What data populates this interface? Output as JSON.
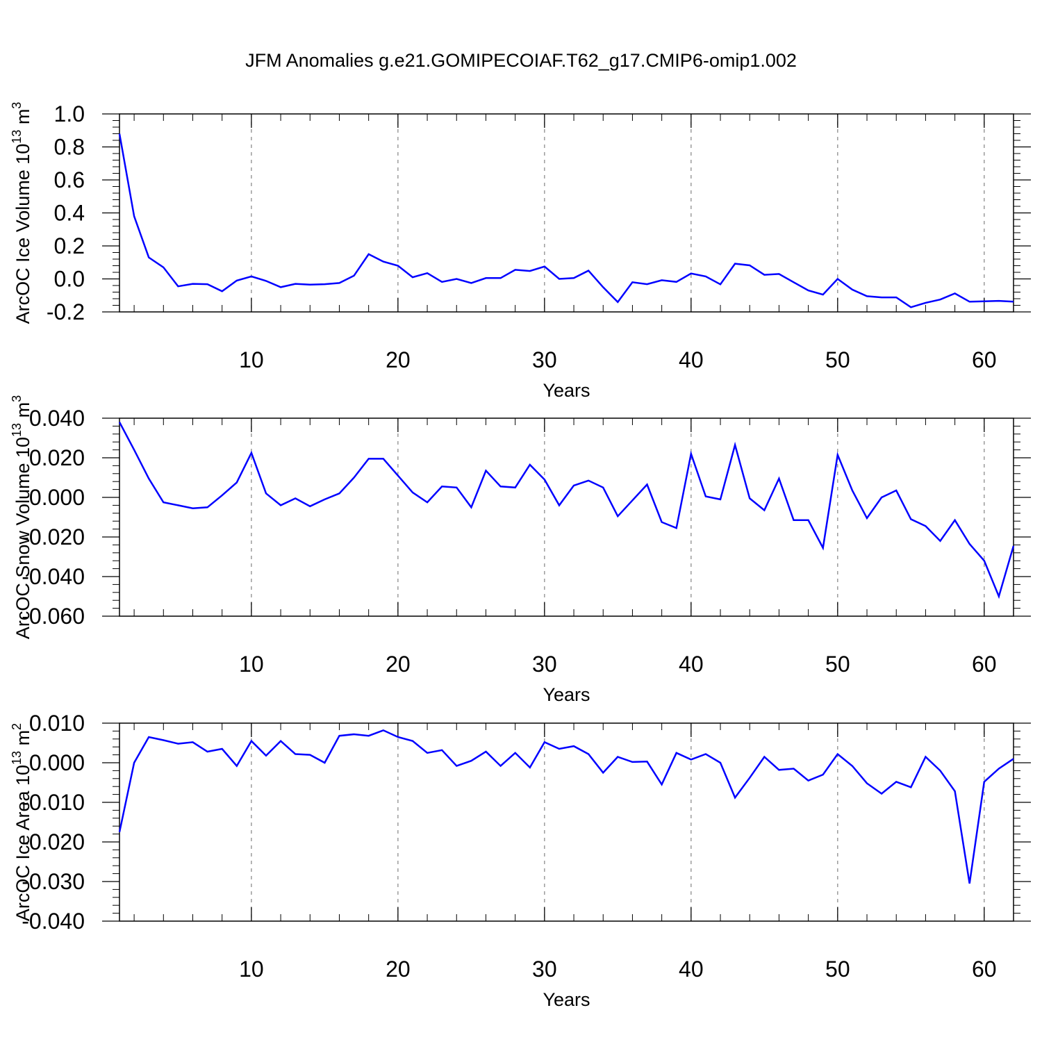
{
  "title": "JFM Anomalies g.e21.GOMIPECOIAF.T62_g17.CMIP6-omip1.002",
  "colors": {
    "line": "#0000ff",
    "axis": "#000000",
    "grid": "#8c8c8c"
  },
  "chart_data": [
    {
      "type": "line",
      "ylabel": "ArcOC Ice Volume 10",
      "ylabel_sup": "13",
      "ylabel_unit": "m",
      "ylabel_unit_sup": "3",
      "xlabel": "Years",
      "xlim": [
        1,
        62
      ],
      "ylim": [
        -0.2,
        1.0
      ],
      "xticks": [
        10,
        20,
        30,
        40,
        50,
        60
      ],
      "xtick_labels": [
        "10",
        "20",
        "30",
        "40",
        "50",
        "60"
      ],
      "yticks": [
        -0.2,
        0.0,
        0.2,
        0.4,
        0.6,
        0.8,
        1.0
      ],
      "ytick_labels": [
        "-0.2",
        "0.0",
        "0.2",
        "0.4",
        "0.6",
        "0.8",
        "1.0"
      ],
      "grid": "vertical dashed at x ticks",
      "x": [
        1,
        2,
        3,
        4,
        5,
        6,
        7,
        8,
        9,
        10,
        11,
        12,
        13,
        14,
        15,
        16,
        17,
        18,
        19,
        20,
        21,
        22,
        23,
        24,
        25,
        26,
        27,
        28,
        29,
        30,
        31,
        32,
        33,
        34,
        35,
        36,
        37,
        38,
        39,
        40,
        41,
        42,
        43,
        44,
        45,
        46,
        47,
        48,
        49,
        50,
        51,
        52,
        53,
        54,
        55,
        56,
        57,
        58,
        59,
        60,
        61,
        62
      ],
      "values": [
        0.88,
        0.38,
        0.13,
        0.07,
        -0.045,
        -0.03,
        -0.032,
        -0.075,
        -0.01,
        0.015,
        -0.012,
        -0.05,
        -0.03,
        -0.035,
        -0.032,
        -0.025,
        0.02,
        0.15,
        0.105,
        0.08,
        0.01,
        0.035,
        -0.018,
        0.0,
        -0.025,
        0.005,
        0.005,
        0.055,
        0.048,
        0.075,
        0.0,
        0.005,
        0.05,
        -0.05,
        -0.14,
        -0.02,
        -0.032,
        -0.008,
        -0.018,
        0.033,
        0.015,
        -0.033,
        0.092,
        0.082,
        0.025,
        0.03,
        -0.02,
        -0.07,
        -0.095,
        0.0,
        -0.065,
        -0.105,
        -0.112,
        -0.112,
        -0.172,
        -0.145,
        -0.125,
        -0.088,
        -0.138,
        -0.136,
        -0.133,
        -0.138
      ]
    },
    {
      "type": "line",
      "ylabel": "ArcOC Snow Volume 10",
      "ylabel_sup": "13",
      "ylabel_unit": "m",
      "ylabel_unit_sup": "3",
      "xlabel": "Years",
      "xlim": [
        1,
        62
      ],
      "ylim": [
        -0.06,
        0.04
      ],
      "xticks": [
        10,
        20,
        30,
        40,
        50,
        60
      ],
      "xtick_labels": [
        "10",
        "20",
        "30",
        "40",
        "50",
        "60"
      ],
      "yticks": [
        -0.06,
        -0.04,
        -0.02,
        0.0,
        0.02,
        0.04
      ],
      "ytick_labels": [
        "-0.060",
        "-0.040",
        "-0.020",
        "0.000",
        "0.020",
        "0.040"
      ],
      "grid": "vertical dashed at x ticks",
      "x": [
        1,
        2,
        3,
        4,
        5,
        6,
        7,
        8,
        9,
        10,
        11,
        12,
        13,
        14,
        15,
        16,
        17,
        18,
        19,
        20,
        21,
        22,
        23,
        24,
        25,
        26,
        27,
        28,
        29,
        30,
        31,
        32,
        33,
        34,
        35,
        36,
        37,
        38,
        39,
        40,
        41,
        42,
        43,
        44,
        45,
        46,
        47,
        48,
        49,
        50,
        51,
        52,
        53,
        54,
        55,
        56,
        57,
        58,
        59,
        60,
        61,
        62
      ],
      "values": [
        0.038,
        0.024,
        0.0095,
        -0.0025,
        -0.004,
        -0.0055,
        -0.005,
        0.001,
        0.0075,
        0.0225,
        0.002,
        -0.004,
        -0.0005,
        -0.0045,
        -0.001,
        0.002,
        0.01,
        0.0195,
        0.0195,
        0.011,
        0.0025,
        -0.0025,
        0.0055,
        0.005,
        -0.005,
        0.0135,
        0.0055,
        0.005,
        0.0165,
        0.009,
        -0.004,
        0.006,
        0.0085,
        0.005,
        -0.0095,
        -0.0015,
        0.0065,
        -0.0125,
        -0.0155,
        0.022,
        0.0005,
        -0.001,
        0.0265,
        -0.0005,
        -0.0065,
        0.0095,
        -0.0115,
        -0.0115,
        -0.0255,
        0.0215,
        0.0035,
        -0.0105,
        0.0,
        0.0035,
        -0.011,
        -0.0145,
        -0.022,
        -0.0115,
        -0.0235,
        -0.032,
        -0.05,
        -0.0245
      ]
    },
    {
      "type": "line",
      "ylabel": "ArcOC Ice Area 10",
      "ylabel_sup": "13",
      "ylabel_unit": "m",
      "ylabel_unit_sup": "2",
      "xlabel": "Years",
      "xlim": [
        1,
        62
      ],
      "ylim": [
        -0.04,
        0.01
      ],
      "xticks": [
        10,
        20,
        30,
        40,
        50,
        60
      ],
      "xtick_labels": [
        "10",
        "20",
        "30",
        "40",
        "50",
        "60"
      ],
      "yticks": [
        -0.04,
        -0.03,
        -0.02,
        -0.01,
        0.0,
        0.01
      ],
      "ytick_labels": [
        "-0.040",
        "-0.030",
        "-0.020",
        "-0.010",
        "0.000",
        "0.010"
      ],
      "grid": "vertical dashed at x ticks",
      "x": [
        1,
        2,
        3,
        4,
        5,
        6,
        7,
        8,
        9,
        10,
        11,
        12,
        13,
        14,
        15,
        16,
        17,
        18,
        19,
        20,
        21,
        22,
        23,
        24,
        25,
        26,
        27,
        28,
        29,
        30,
        31,
        32,
        33,
        34,
        35,
        36,
        37,
        38,
        39,
        40,
        41,
        42,
        43,
        44,
        45,
        46,
        47,
        48,
        49,
        50,
        51,
        52,
        53,
        54,
        55,
        56,
        57,
        58,
        59,
        60,
        61,
        62
      ],
      "values": [
        -0.0175,
        0.0,
        0.0065,
        0.0057,
        0.0048,
        0.0052,
        0.0028,
        0.0035,
        -0.0008,
        0.0055,
        0.0018,
        0.0055,
        0.0022,
        0.002,
        0.0,
        0.0068,
        0.0072,
        0.0068,
        0.0082,
        0.0065,
        0.0055,
        0.0025,
        0.0032,
        -0.0008,
        0.0005,
        0.0028,
        -0.0008,
        0.0025,
        -0.0012,
        0.0052,
        0.0035,
        0.0042,
        0.0022,
        -0.0025,
        0.0015,
        0.0002,
        0.0003,
        -0.0055,
        0.0025,
        0.0008,
        0.0022,
        0.0,
        -0.0088,
        -0.0038,
        0.0015,
        -0.0018,
        -0.0015,
        -0.0045,
        -0.003,
        0.0022,
        -0.0008,
        -0.0052,
        -0.0078,
        -0.0048,
        -0.0062,
        0.0015,
        -0.002,
        -0.0072,
        -0.0305,
        -0.0048,
        -0.0015,
        0.001
      ]
    }
  ]
}
